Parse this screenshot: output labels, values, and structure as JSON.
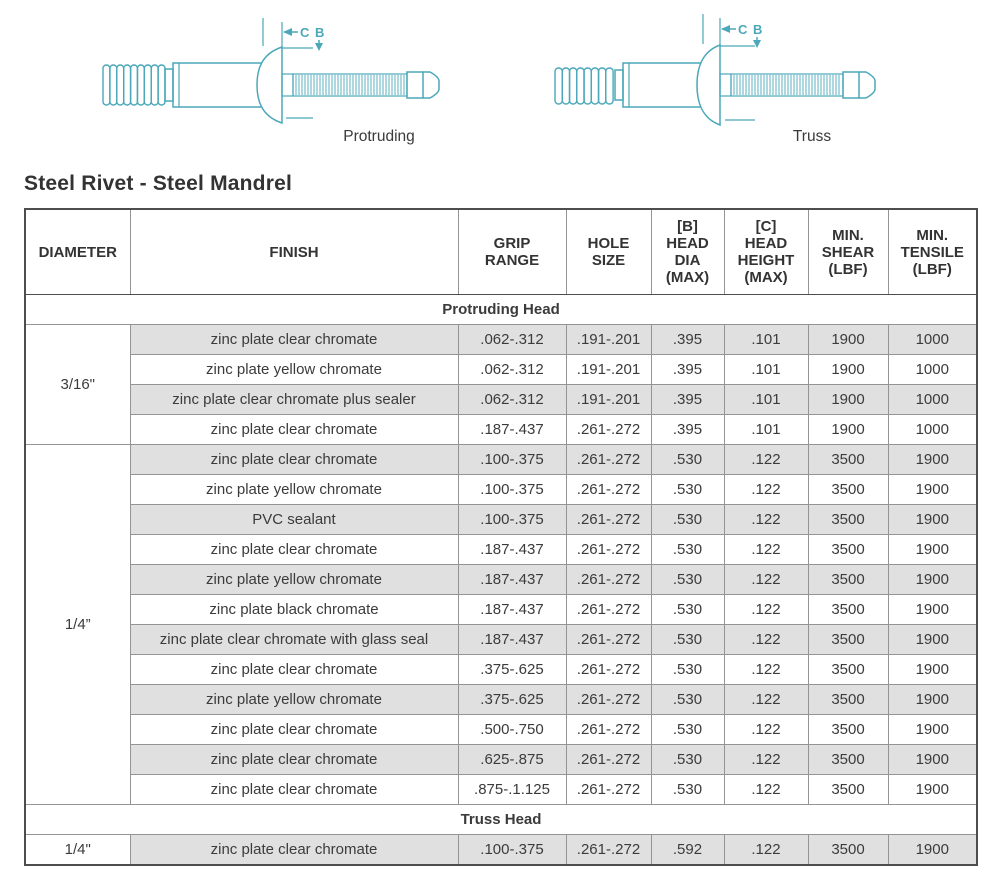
{
  "page": {
    "title": "Steel Rivet - Steel Mandrel"
  },
  "colors": {
    "accent_teal": "#4BA8B9",
    "row_shade": "#e0e0e0",
    "border_dark": "#4d4d4d",
    "border_light": "#949494",
    "text": "#3b3b3b"
  },
  "diagrams": {
    "protruding": {
      "label": "Protruding",
      "dim_c": "C",
      "dim_b": "B"
    },
    "truss": {
      "label": "Truss",
      "dim_c": "C",
      "dim_b": "B"
    }
  },
  "table": {
    "columns": [
      "DIAMETER",
      "FINISH",
      "GRIP\nRANGE",
      "HOLE\nSIZE",
      "[B]\nHEAD\nDIA\n(MAX)",
      "[C]\nHEAD\nHEIGHT\n(MAX)",
      "MIN.\nSHEAR\n(LBF)",
      "MIN.\nTENSILE\n(LBF)"
    ],
    "sections": [
      {
        "section": "Protruding Head",
        "groups": [
          {
            "diameter": "3/16\"",
            "rows": [
              [
                "zinc plate clear chromate",
                ".062-.312",
                ".191-.201",
                ".395",
                ".101",
                "1900",
                "1000"
              ],
              [
                "zinc plate yellow chromate",
                ".062-.312",
                ".191-.201",
                ".395",
                ".101",
                "1900",
                "1000"
              ],
              [
                "zinc plate clear chromate plus sealer",
                ".062-.312",
                ".191-.201",
                ".395",
                ".101",
                "1900",
                "1000"
              ],
              [
                "zinc plate clear chromate",
                ".187-.437",
                ".261-.272",
                ".395",
                ".101",
                "1900",
                "1000"
              ]
            ]
          },
          {
            "diameter": "1/4”",
            "rows": [
              [
                "zinc plate clear chromate",
                ".100-.375",
                ".261-.272",
                ".530",
                ".122",
                "3500",
                "1900"
              ],
              [
                "zinc plate yellow chromate",
                ".100-.375",
                ".261-.272",
                ".530",
                ".122",
                "3500",
                "1900"
              ],
              [
                "PVC sealant",
                ".100-.375",
                ".261-.272",
                ".530",
                ".122",
                "3500",
                "1900"
              ],
              [
                "zinc plate clear chromate",
                ".187-.437",
                ".261-.272",
                ".530",
                ".122",
                "3500",
                "1900"
              ],
              [
                "zinc plate yellow chromate",
                ".187-.437",
                ".261-.272",
                ".530",
                ".122",
                "3500",
                "1900"
              ],
              [
                "zinc plate black chromate",
                ".187-.437",
                ".261-.272",
                ".530",
                ".122",
                "3500",
                "1900"
              ],
              [
                "zinc plate clear chromate with glass seal",
                ".187-.437",
                ".261-.272",
                ".530",
                ".122",
                "3500",
                "1900"
              ],
              [
                "zinc plate clear chromate",
                ".375-.625",
                ".261-.272",
                ".530",
                ".122",
                "3500",
                "1900"
              ],
              [
                "zinc plate yellow chromate",
                ".375-.625",
                ".261-.272",
                ".530",
                ".122",
                "3500",
                "1900"
              ],
              [
                "zinc plate clear chromate",
                ".500-.750",
                ".261-.272",
                ".530",
                ".122",
                "3500",
                "1900"
              ],
              [
                "zinc plate clear chromate",
                ".625-.875",
                ".261-.272",
                ".530",
                ".122",
                "3500",
                "1900"
              ],
              [
                "zinc plate clear chromate",
                ".875-.1.125",
                ".261-.272",
                ".530",
                ".122",
                "3500",
                "1900"
              ]
            ]
          }
        ]
      },
      {
        "section": "Truss Head",
        "groups": [
          {
            "diameter": "1/4\"",
            "rows": [
              [
                "zinc plate clear chromate",
                ".100-.375",
                ".261-.272",
                ".592",
                ".122",
                "3500",
                "1900"
              ]
            ]
          }
        ]
      }
    ]
  }
}
